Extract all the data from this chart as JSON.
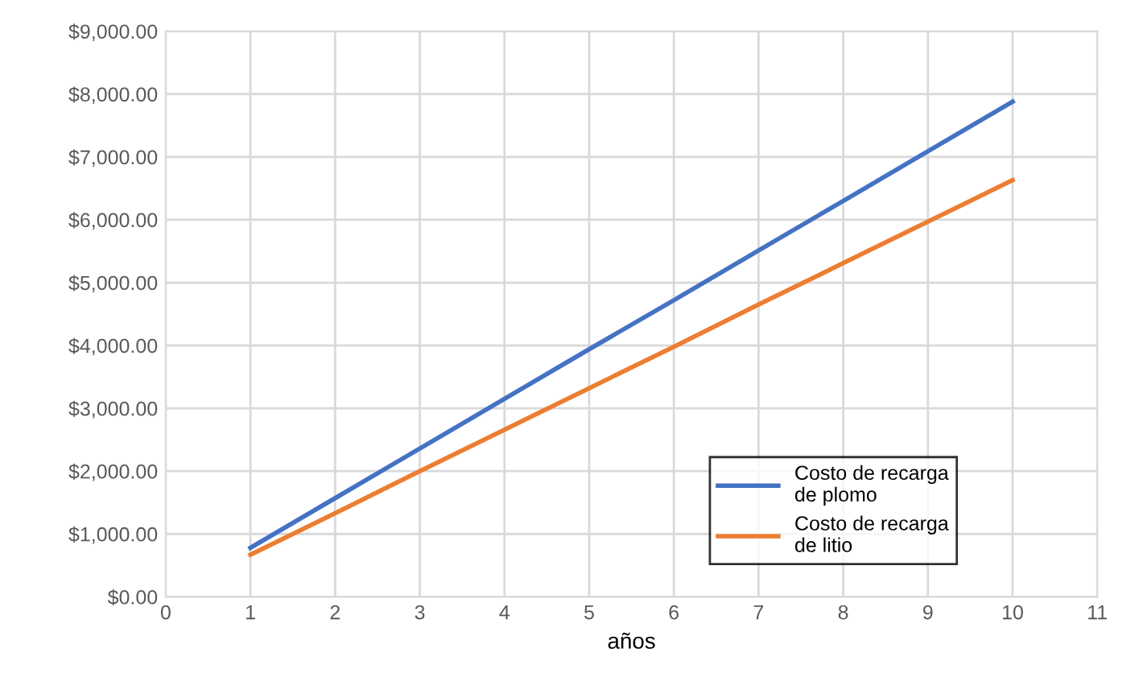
{
  "chart_data": {
    "type": "line",
    "xlabel": "años",
    "x": [
      1,
      2,
      3,
      4,
      5,
      6,
      7,
      8,
      9,
      10
    ],
    "series": [
      {
        "name": "Costo de recarga de plomo",
        "color": "#4472c4",
        "values": [
          780,
          1570,
          2360,
          3150,
          3940,
          4720,
          5510,
          6300,
          7090,
          7880
        ]
      },
      {
        "name": "Costo de recarga de litio",
        "color": "#ed7d31",
        "values": [
          670,
          1330,
          2000,
          2660,
          3320,
          3980,
          4650,
          5310,
          5970,
          6630
        ]
      }
    ],
    "xlim": [
      0,
      11
    ],
    "xticks": [
      0,
      1,
      2,
      3,
      4,
      5,
      6,
      7,
      8,
      9,
      10,
      11
    ],
    "ylim": [
      0,
      9000
    ],
    "yticks": [
      {
        "value": 0,
        "label": "$0.00"
      },
      {
        "value": 1000,
        "label": "$1,000.00"
      },
      {
        "value": 2000,
        "label": "$2,000.00"
      },
      {
        "value": 3000,
        "label": "$3,000.00"
      },
      {
        "value": 4000,
        "label": "$4,000.00"
      },
      {
        "value": 5000,
        "label": "$5,000.00"
      },
      {
        "value": 6000,
        "label": "$6,000.00"
      },
      {
        "value": 7000,
        "label": "$7,000.00"
      },
      {
        "value": 8000,
        "label": "$8,000.00"
      },
      {
        "value": 9000,
        "label": "$9,000.00"
      }
    ],
    "grid": true,
    "legend": "bottom right",
    "marker": "none",
    "line_style": "solid"
  }
}
